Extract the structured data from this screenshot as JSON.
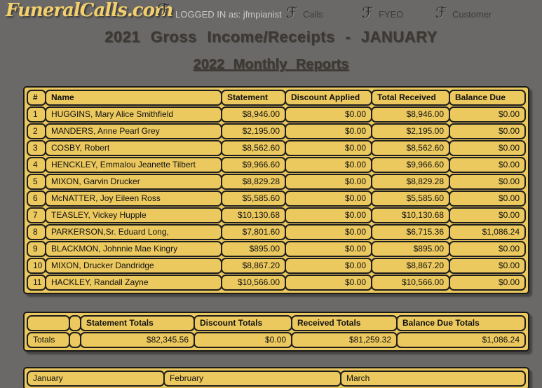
{
  "header": {
    "logo_text": "FuneralCalls.com",
    "monogram_glyph": "ℱ",
    "logged_in_text": "LOGGED IN as: jfmpianist",
    "nav": [
      {
        "label": "Calls"
      },
      {
        "label": "FYEO"
      },
      {
        "label": "Customer"
      }
    ]
  },
  "titles": {
    "main": "2021 Gross Income/Receipts - JANUARY",
    "sub": "2022 Monthly Reports"
  },
  "report_table": {
    "columns": [
      "#",
      "Name",
      "Statement",
      "Discount Applied",
      "Total Received",
      "Balance Due"
    ],
    "rows": [
      [
        "1",
        "HUGGINS, Mary Alice Smithfield",
        "$8,946.00",
        "$0.00",
        "$8,946.00",
        "$0.00"
      ],
      [
        "2",
        "MANDERS, Anne Pearl Grey",
        "$2,195.00",
        "$0.00",
        "$2,195.00",
        "$0.00"
      ],
      [
        "3",
        "COSBY, Robert",
        "$8,562.60",
        "$0.00",
        "$8,562.60",
        "$0.00"
      ],
      [
        "4",
        "HENCKLEY, Emmalou Jeanette Tilbert",
        "$9,966.60",
        "$0.00",
        "$9,966.60",
        "$0.00"
      ],
      [
        "5",
        "MIXON, Garvin Drucker",
        "$8,829.28",
        "$0.00",
        "$8,829.28",
        "$0.00"
      ],
      [
        "6",
        "McNATTER, Joy Eileen Ross",
        "$5,585.60",
        "$0.00",
        "$5,585.60",
        "$0.00"
      ],
      [
        "7",
        "TEASLEY, Vickey Hupple",
        "$10,130.68",
        "$0.00",
        "$10,130.68",
        "$0.00"
      ],
      [
        "8",
        "PARKERSON,Sr. Eduard Long,",
        "$7,801.60",
        "$0.00",
        "$6,715.36",
        "$1,086.24"
      ],
      [
        "9",
        "BLACKMON, Johnnie Mae Kingry",
        "$895.00",
        "$0.00",
        "$895.00",
        "$0.00"
      ],
      [
        "10",
        "MIXON, Drucker Dandridge",
        "$8,867.20",
        "$0.00",
        "$8,867.20",
        "$0.00"
      ],
      [
        "11",
        "HACKLEY, Randall Zayne",
        "$10,566.00",
        "$0.00",
        "$10,566.00",
        "$0.00"
      ]
    ]
  },
  "totals_table": {
    "columns": [
      "",
      "",
      "Statement Totals",
      "Discount Totals",
      "Received Totals",
      "Balance Due Totals"
    ],
    "row": [
      "Totals",
      "",
      "$82,345.56",
      "$0.00",
      "$81,259.32",
      "$1,086.24"
    ]
  },
  "months_table": {
    "cells": [
      "January",
      "February",
      "March"
    ]
  },
  "colors": {
    "page_background": "#6b6968",
    "table_fill": "#ecc95e",
    "table_border": "#1e1e1e",
    "logo_yellow": "#f3d06c",
    "title_text": "#3d3831",
    "logged_in_text": "#cbc9c8"
  }
}
